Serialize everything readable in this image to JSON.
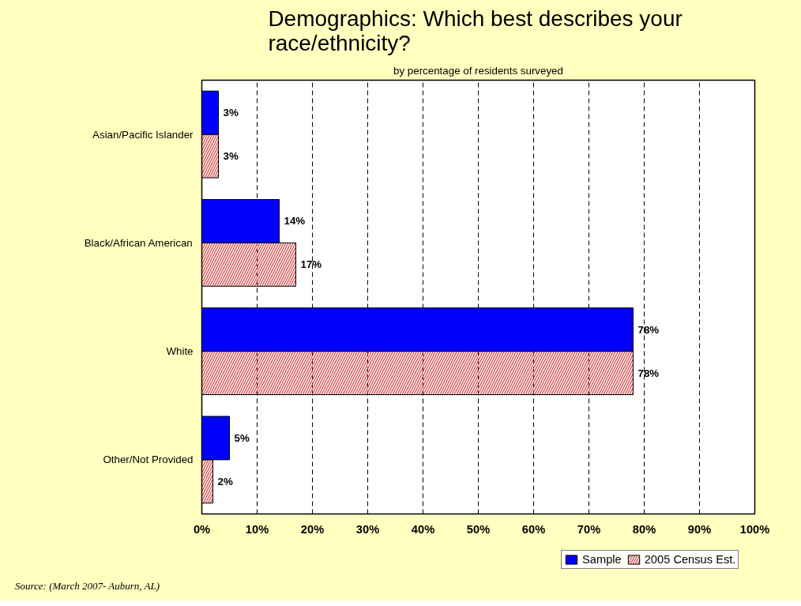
{
  "chart_data": {
    "type": "bar",
    "orientation": "horizontal",
    "title": "Demographics:  Which best describes your\nrace/ethnicity?",
    "subtitle": "by percentage of residents surveyed",
    "categories": [
      "Asian/Pacific Islander",
      "Black/African American",
      "White",
      "Other/Not Provided"
    ],
    "series": [
      {
        "name": "Sample",
        "color": "#0000ff",
        "values": [
          3,
          14,
          78,
          5
        ],
        "value_labels": [
          "3%",
          "14%",
          "78%",
          "5%"
        ]
      },
      {
        "name": "2005 Census Est.",
        "color": "#cc3333",
        "values": [
          3,
          17,
          78,
          2
        ],
        "value_labels": [
          "3%",
          "17%",
          "78%",
          "2%"
        ]
      }
    ],
    "xlim": [
      0,
      100
    ],
    "xticks": [
      {
        "value": 0,
        "label": "0%"
      },
      {
        "value": 10,
        "label": "10%"
      },
      {
        "value": 20,
        "label": "20%"
      },
      {
        "value": 30,
        "label": "30%"
      },
      {
        "value": 40,
        "label": "40%"
      },
      {
        "value": 50,
        "label": "50%"
      },
      {
        "value": 60,
        "label": "60%"
      },
      {
        "value": 70,
        "label": "70%"
      },
      {
        "value": 80,
        "label": "80%"
      },
      {
        "value": 90,
        "label": "90%"
      },
      {
        "value": 100,
        "label": "100%"
      }
    ],
    "grid": "x",
    "legend": "bottom right",
    "annotations": [
      "Source:  (March 2007- Auburn, AL)"
    ]
  }
}
